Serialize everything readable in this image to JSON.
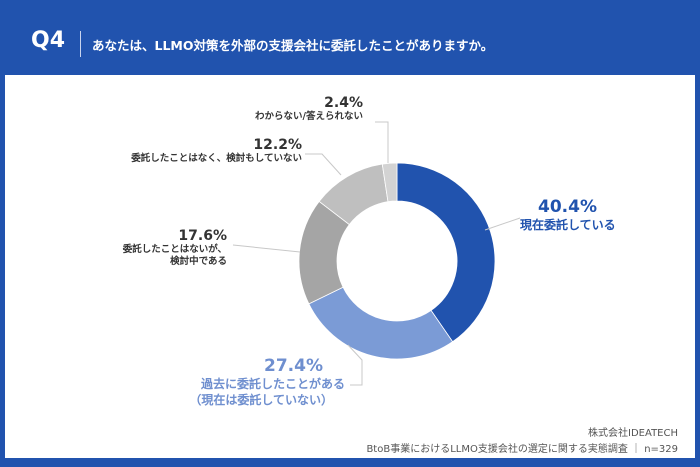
{
  "header": {
    "q": "Q4",
    "question": "あなたは、LLMO対策を外部の支援会社に委託したことがありますか。"
  },
  "chart_data": {
    "type": "pie",
    "donut": true,
    "start": "top-clockwise",
    "slices": [
      {
        "pct": "40.4%",
        "value": 40.4,
        "label": "現在委託している",
        "label2": "",
        "color": "#2153ae"
      },
      {
        "pct": "27.4%",
        "value": 27.4,
        "label": "過去に委託したことがある",
        "label2": "（現在は委託していない）",
        "color": "#7b9bd6"
      },
      {
        "pct": "17.6%",
        "value": 17.6,
        "label": "委託したことはないが、",
        "label2": "検討中である",
        "color": "#a5a5a5"
      },
      {
        "pct": "12.2%",
        "value": 12.2,
        "label": "委託したことはなく、検討もしていない",
        "label2": "",
        "color": "#bfbfbf"
      },
      {
        "pct": "2.4%",
        "value": 2.4,
        "label": "わからない/答えられない",
        "label2": "",
        "color": "#d3d3d3"
      }
    ]
  },
  "footer": {
    "company": "株式会社IDEATECH",
    "source": "BtoB事業におけるLLMO支援会社の選定に関する実態調査 ｜ n=329"
  }
}
